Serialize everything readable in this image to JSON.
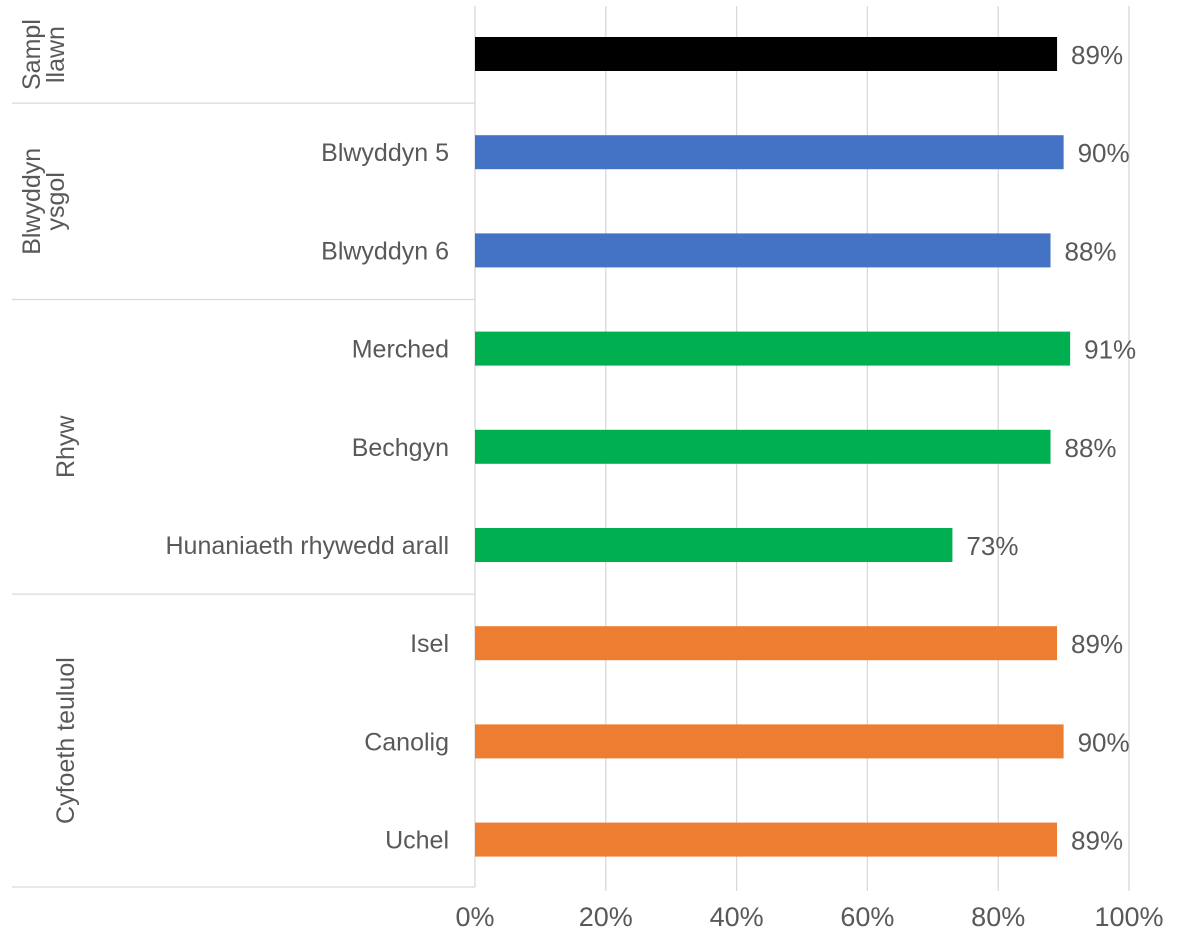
{
  "chart_data": {
    "type": "bar",
    "orientation": "horizontal",
    "title": "",
    "xlabel": "",
    "ylabel": "",
    "xlim": [
      0,
      100
    ],
    "x_ticks": [
      "0%",
      "20%",
      "40%",
      "60%",
      "80%",
      "100%"
    ],
    "grid": true,
    "legend": "none",
    "groups": [
      {
        "name": "Sampl\nllawn",
        "color": "#000000",
        "items": [
          {
            "category": "",
            "value": 89,
            "label": "89%"
          }
        ]
      },
      {
        "name": "Blwyddyn\nysgol",
        "color": "#4472C4",
        "items": [
          {
            "category": "Blwyddyn 5",
            "value": 90,
            "label": "90%"
          },
          {
            "category": "Blwyddyn 6",
            "value": 88,
            "label": "88%"
          }
        ]
      },
      {
        "name": "Rhyw",
        "color": "#00B050",
        "items": [
          {
            "category": "Merched",
            "value": 91,
            "label": "91%"
          },
          {
            "category": "Bechgyn",
            "value": 88,
            "label": "88%"
          },
          {
            "category": "Hunaniaeth rhywedd arall",
            "value": 73,
            "label": "73%"
          }
        ]
      },
      {
        "name": "Cyfoeth teuluol",
        "color": "#ED7D31",
        "items": [
          {
            "category": "Isel",
            "value": 89,
            "label": "89%"
          },
          {
            "category": "Canolig",
            "value": 90,
            "label": "90%"
          },
          {
            "category": "Uchel",
            "value": 89,
            "label": "89%"
          }
        ]
      }
    ]
  },
  "colors": {
    "grid": "#D9D9D9",
    "axis": "#D9D9D9",
    "text": "#595959"
  }
}
